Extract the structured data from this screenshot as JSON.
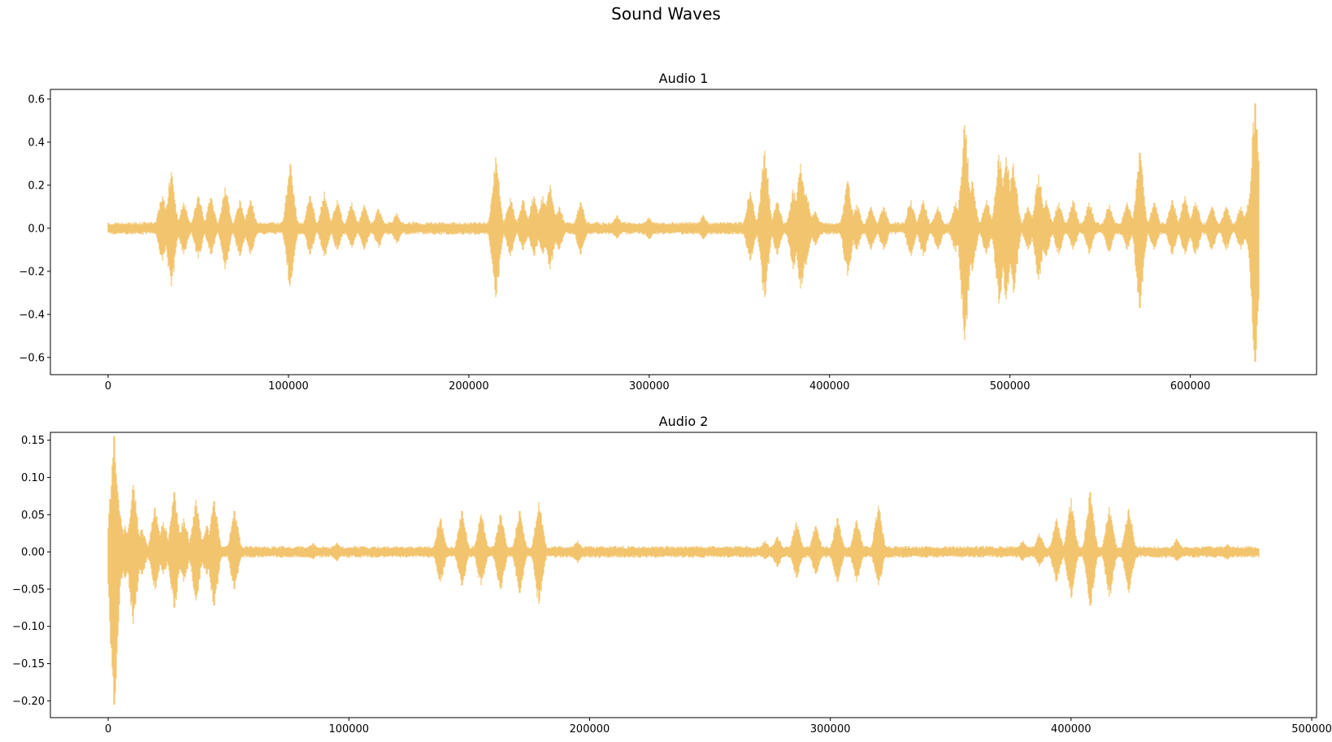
{
  "figure": {
    "title": "Sound Waves"
  },
  "chart_data": [
    {
      "type": "line",
      "title": "Audio 1",
      "xlabel": "",
      "ylabel": "",
      "xlim": [
        -32000,
        670000
      ],
      "ylim": [
        -0.68,
        0.645
      ],
      "xticks": [
        0,
        100000,
        200000,
        300000,
        400000,
        500000,
        600000
      ],
      "xtick_labels": [
        "0",
        "100000",
        "200000",
        "300000",
        "400000",
        "500000",
        "600000"
      ],
      "yticks": [
        0.6,
        0.4,
        0.2,
        0.0,
        -0.2,
        -0.4,
        -0.6
      ],
      "ytick_labels": [
        "0.6",
        "0.4",
        "0.2",
        "0.0",
        "−0.2",
        "−0.4",
        "−0.6"
      ],
      "grid": false,
      "color": "#f2c46d",
      "n_samples": 638000,
      "noise_floor": 0.03,
      "series": [
        {
          "bursts": [
            {
              "x": 30000,
              "up": 0.15,
              "down": -0.15
            },
            {
              "x": 35000,
              "up": 0.26,
              "down": -0.27
            },
            {
              "x": 42000,
              "up": 0.12,
              "down": -0.12
            },
            {
              "x": 50000,
              "up": 0.15,
              "down": -0.14
            },
            {
              "x": 57000,
              "up": 0.14,
              "down": -0.12
            },
            {
              "x": 65000,
              "up": 0.19,
              "down": -0.19
            },
            {
              "x": 73000,
              "up": 0.13,
              "down": -0.13
            },
            {
              "x": 79000,
              "up": 0.13,
              "down": -0.12
            },
            {
              "x": 101000,
              "up": 0.3,
              "down": -0.27
            },
            {
              "x": 112000,
              "up": 0.15,
              "down": -0.12
            },
            {
              "x": 120000,
              "up": 0.17,
              "down": -0.13
            },
            {
              "x": 127000,
              "up": 0.13,
              "down": -0.1
            },
            {
              "x": 135000,
              "up": 0.12,
              "down": -0.09
            },
            {
              "x": 142000,
              "up": 0.11,
              "down": -0.1
            },
            {
              "x": 150000,
              "up": 0.09,
              "down": -0.09
            },
            {
              "x": 160000,
              "up": 0.07,
              "down": -0.07
            },
            {
              "x": 215000,
              "up": 0.33,
              "down": -0.32
            },
            {
              "x": 223000,
              "up": 0.14,
              "down": -0.13
            },
            {
              "x": 230000,
              "up": 0.13,
              "down": -0.1
            },
            {
              "x": 236000,
              "up": 0.15,
              "down": -0.13
            },
            {
              "x": 241000,
              "up": 0.15,
              "down": -0.12
            },
            {
              "x": 245000,
              "up": 0.2,
              "down": -0.19
            },
            {
              "x": 250000,
              "up": 0.1,
              "down": -0.1
            },
            {
              "x": 262000,
              "up": 0.12,
              "down": -0.12
            },
            {
              "x": 282000,
              "up": 0.06,
              "down": -0.05
            },
            {
              "x": 300000,
              "up": 0.05,
              "down": -0.05
            },
            {
              "x": 330000,
              "up": 0.06,
              "down": -0.05
            },
            {
              "x": 356000,
              "up": 0.17,
              "down": -0.15
            },
            {
              "x": 364000,
              "up": 0.36,
              "down": -0.32
            },
            {
              "x": 371000,
              "up": 0.12,
              "down": -0.12
            },
            {
              "x": 380000,
              "up": 0.18,
              "down": -0.19
            },
            {
              "x": 384000,
              "up": 0.3,
              "down": -0.28
            },
            {
              "x": 387000,
              "up": 0.16,
              "down": -0.17
            },
            {
              "x": 392000,
              "up": 0.08,
              "down": -0.08
            },
            {
              "x": 410000,
              "up": 0.22,
              "down": -0.22
            },
            {
              "x": 415000,
              "up": 0.11,
              "down": -0.1
            },
            {
              "x": 423000,
              "up": 0.1,
              "down": -0.1
            },
            {
              "x": 430000,
              "up": 0.1,
              "down": -0.1
            },
            {
              "x": 445000,
              "up": 0.13,
              "down": -0.13
            },
            {
              "x": 452000,
              "up": 0.13,
              "down": -0.13
            },
            {
              "x": 460000,
              "up": 0.1,
              "down": -0.1
            },
            {
              "x": 470000,
              "up": 0.12,
              "down": -0.11
            },
            {
              "x": 475000,
              "up": 0.48,
              "down": -0.52
            },
            {
              "x": 479000,
              "up": 0.22,
              "down": -0.2
            },
            {
              "x": 487000,
              "up": 0.13,
              "down": -0.12
            },
            {
              "x": 494000,
              "up": 0.34,
              "down": -0.35
            },
            {
              "x": 498000,
              "up": 0.33,
              "down": -0.33
            },
            {
              "x": 502000,
              "up": 0.3,
              "down": -0.3
            },
            {
              "x": 510000,
              "up": 0.1,
              "down": -0.1
            },
            {
              "x": 516000,
              "up": 0.25,
              "down": -0.24
            },
            {
              "x": 520000,
              "up": 0.13,
              "down": -0.13
            },
            {
              "x": 527000,
              "up": 0.12,
              "down": -0.12
            },
            {
              "x": 535000,
              "up": 0.13,
              "down": -0.1
            },
            {
              "x": 544000,
              "up": 0.12,
              "down": -0.12
            },
            {
              "x": 555000,
              "up": 0.11,
              "down": -0.11
            },
            {
              "x": 565000,
              "up": 0.12,
              "down": -0.1
            },
            {
              "x": 572000,
              "up": 0.35,
              "down": -0.37
            },
            {
              "x": 580000,
              "up": 0.12,
              "down": -0.1
            },
            {
              "x": 590000,
              "up": 0.13,
              "down": -0.12
            },
            {
              "x": 597000,
              "up": 0.15,
              "down": -0.12
            },
            {
              "x": 603000,
              "up": 0.12,
              "down": -0.12
            },
            {
              "x": 612000,
              "up": 0.1,
              "down": -0.1
            },
            {
              "x": 620000,
              "up": 0.1,
              "down": -0.1
            },
            {
              "x": 628000,
              "up": 0.1,
              "down": -0.1
            },
            {
              "x": 633000,
              "up": 0.15,
              "down": -0.1
            },
            {
              "x": 636000,
              "up": 0.58,
              "down": -0.62
            }
          ]
        }
      ]
    },
    {
      "type": "line",
      "title": "Audio 2",
      "xlabel": "",
      "ylabel": "",
      "xlim": [
        -24000,
        502000
      ],
      "ylim": [
        -0.2225,
        0.1605
      ],
      "xticks": [
        0,
        100000,
        200000,
        300000,
        400000,
        500000
      ],
      "xtick_labels": [
        "0",
        "100000",
        "200000",
        "300000",
        "400000",
        "500000"
      ],
      "yticks": [
        0.15,
        0.1,
        0.05,
        0.0,
        -0.05,
        -0.1,
        -0.15,
        -0.2
      ],
      "ytick_labels": [
        "0.15",
        "0.10",
        "0.05",
        "0.00",
        "−0.05",
        "−0.10",
        "−0.15",
        "−0.20"
      ],
      "grid": false,
      "color": "#f2c46d",
      "n_samples": 478000,
      "noise_floor": 0.008,
      "series": [
        {
          "bursts": [
            {
              "x": 2500,
              "up": 0.155,
              "down": -0.205
            },
            {
              "x": 4500,
              "up": 0.055,
              "down": -0.05
            },
            {
              "x": 7000,
              "up": 0.035,
              "down": -0.035
            },
            {
              "x": 10500,
              "up": 0.09,
              "down": -0.097
            },
            {
              "x": 14000,
              "up": 0.03,
              "down": -0.03
            },
            {
              "x": 19500,
              "up": 0.06,
              "down": -0.05
            },
            {
              "x": 23000,
              "up": 0.04,
              "down": -0.03
            },
            {
              "x": 27500,
              "up": 0.08,
              "down": -0.075
            },
            {
              "x": 31500,
              "up": 0.045,
              "down": -0.04
            },
            {
              "x": 36500,
              "up": 0.07,
              "down": -0.065
            },
            {
              "x": 41000,
              "up": 0.035,
              "down": -0.03
            },
            {
              "x": 44000,
              "up": 0.068,
              "down": -0.072
            },
            {
              "x": 52500,
              "up": 0.055,
              "down": -0.05
            },
            {
              "x": 85000,
              "up": 0.012,
              "down": -0.01
            },
            {
              "x": 95000,
              "up": 0.012,
              "down": -0.012
            },
            {
              "x": 138000,
              "up": 0.045,
              "down": -0.04
            },
            {
              "x": 147000,
              "up": 0.055,
              "down": -0.045
            },
            {
              "x": 155000,
              "up": 0.05,
              "down": -0.045
            },
            {
              "x": 163000,
              "up": 0.05,
              "down": -0.05
            },
            {
              "x": 171000,
              "up": 0.055,
              "down": -0.055
            },
            {
              "x": 179000,
              "up": 0.067,
              "down": -0.07
            },
            {
              "x": 195000,
              "up": 0.015,
              "down": -0.015
            },
            {
              "x": 273000,
              "up": 0.015,
              "down": -0.01
            },
            {
              "x": 278000,
              "up": 0.02,
              "down": -0.02
            },
            {
              "x": 286000,
              "up": 0.04,
              "down": -0.035
            },
            {
              "x": 294000,
              "up": 0.035,
              "down": -0.03
            },
            {
              "x": 303000,
              "up": 0.045,
              "down": -0.04
            },
            {
              "x": 311000,
              "up": 0.043,
              "down": -0.04
            },
            {
              "x": 320000,
              "up": 0.062,
              "down": -0.045
            },
            {
              "x": 380000,
              "up": 0.015,
              "down": -0.012
            },
            {
              "x": 387000,
              "up": 0.025,
              "down": -0.02
            },
            {
              "x": 394000,
              "up": 0.045,
              "down": -0.04
            },
            {
              "x": 400000,
              "up": 0.072,
              "down": -0.062
            },
            {
              "x": 408000,
              "up": 0.08,
              "down": -0.072
            },
            {
              "x": 416000,
              "up": 0.06,
              "down": -0.06
            },
            {
              "x": 424000,
              "up": 0.058,
              "down": -0.055
            },
            {
              "x": 444000,
              "up": 0.018,
              "down": -0.012
            },
            {
              "x": 465000,
              "up": 0.01,
              "down": -0.01
            }
          ]
        }
      ]
    }
  ]
}
